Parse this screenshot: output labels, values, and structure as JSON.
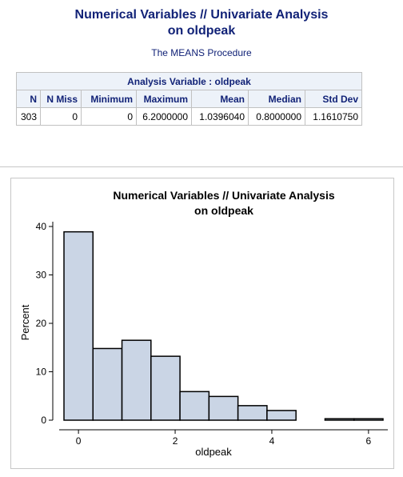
{
  "report": {
    "title_line1": "Numerical Variables // Univariate Analysis",
    "title_line2": "on oldpeak",
    "procedure": "The MEANS Procedure"
  },
  "stats_table": {
    "caption": "Analysis Variable : oldpeak",
    "headers": [
      "N",
      "N Miss",
      "Minimum",
      "Maximum",
      "Mean",
      "Median",
      "Std Dev"
    ],
    "row": [
      "303",
      "0",
      "0",
      "6.2000000",
      "1.0396040",
      "0.8000000",
      "1.1610750"
    ]
  },
  "chart_data": {
    "type": "bar",
    "title": "Numerical Variables // Univariate Analysis",
    "subtitle": "on oldpeak",
    "xlabel": "oldpeak",
    "ylabel": "Percent",
    "bin_width": 0.6,
    "bins": [
      {
        "start": -0.3,
        "end": 0.3,
        "value": 38.9
      },
      {
        "start": 0.3,
        "end": 0.9,
        "value": 14.8
      },
      {
        "start": 0.9,
        "end": 1.5,
        "value": 16.5
      },
      {
        "start": 1.5,
        "end": 2.1,
        "value": 13.2
      },
      {
        "start": 2.1,
        "end": 2.7,
        "value": 5.9
      },
      {
        "start": 2.7,
        "end": 3.3,
        "value": 4.9
      },
      {
        "start": 3.3,
        "end": 3.9,
        "value": 3.0
      },
      {
        "start": 3.9,
        "end": 4.5,
        "value": 2.0
      },
      {
        "start": 4.5,
        "end": 5.1,
        "value": 0.0
      },
      {
        "start": 5.1,
        "end": 5.7,
        "value": 0.3
      },
      {
        "start": 5.7,
        "end": 6.3,
        "value": 0.3
      }
    ],
    "xticks": [
      0,
      2,
      4,
      6
    ],
    "yticks": [
      0,
      10,
      20,
      30,
      40
    ],
    "xlim": [
      -0.3,
      6.3
    ],
    "ylim": [
      0,
      40
    ],
    "bar_fill": "#cad5e5",
    "bar_stroke": "#000000",
    "grid": false
  }
}
